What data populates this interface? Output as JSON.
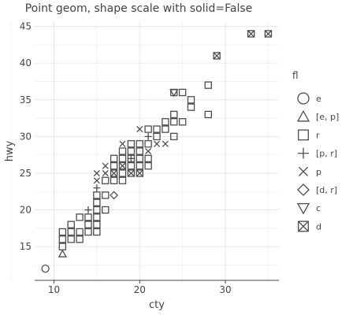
{
  "chart_data": {
    "type": "scatter",
    "title": "Point geom, shape scale with solid=False",
    "xlabel": "cty",
    "ylabel": "hwy",
    "xlim": [
      7.75,
      36.25
    ],
    "ylim": [
      10.4,
      45.6
    ],
    "x_ticks": [
      10,
      20,
      30
    ],
    "y_ticks": [
      15,
      20,
      25,
      30,
      35,
      40,
      45
    ],
    "grid": true,
    "mark_color": "#4d4d4d",
    "legend": {
      "title": "fl",
      "position": "right",
      "entries": [
        {
          "label": "e",
          "shape": "circle"
        },
        {
          "label": "[e, p]",
          "shape": "triangle-up"
        },
        {
          "label": "r",
          "shape": "square"
        },
        {
          "label": "[p, r]",
          "shape": "plus"
        },
        {
          "label": "p",
          "shape": "cross"
        },
        {
          "label": "[d, r]",
          "shape": "diamond"
        },
        {
          "label": "c",
          "shape": "triangle-down"
        },
        {
          "label": "d",
          "shape": "square-cross"
        }
      ]
    },
    "series": [
      {
        "name": "e",
        "shape": "circle",
        "points": [
          [
            9,
            12
          ]
        ]
      },
      {
        "name": "[e, p]",
        "shape": "triangle-up",
        "points": [
          [
            11,
            14
          ]
        ]
      },
      {
        "name": "r",
        "shape": "square",
        "points": [
          [
            11,
            15
          ],
          [
            11,
            16
          ],
          [
            11,
            17
          ],
          [
            12,
            16
          ],
          [
            12,
            17
          ],
          [
            12,
            18
          ],
          [
            13,
            16
          ],
          [
            13,
            17
          ],
          [
            13,
            19
          ],
          [
            14,
            17
          ],
          [
            14,
            18
          ],
          [
            14,
            19
          ],
          [
            15,
            17
          ],
          [
            15,
            18
          ],
          [
            15,
            19
          ],
          [
            15,
            20
          ],
          [
            15,
            21
          ],
          [
            15,
            22
          ],
          [
            16,
            20
          ],
          [
            16,
            22
          ],
          [
            16,
            24
          ],
          [
            17,
            24
          ],
          [
            17,
            25
          ],
          [
            17,
            26
          ],
          [
            17,
            27
          ],
          [
            18,
            24
          ],
          [
            18,
            25
          ],
          [
            18,
            26
          ],
          [
            18,
            27
          ],
          [
            18,
            28
          ],
          [
            19,
            25
          ],
          [
            19,
            26
          ],
          [
            19,
            27
          ],
          [
            19,
            28
          ],
          [
            19,
            29
          ],
          [
            20,
            25
          ],
          [
            20,
            26
          ],
          [
            20,
            27
          ],
          [
            20,
            28
          ],
          [
            20,
            29
          ],
          [
            21,
            26
          ],
          [
            21,
            27
          ],
          [
            21,
            29
          ],
          [
            21,
            31
          ],
          [
            22,
            30
          ],
          [
            22,
            31
          ],
          [
            23,
            31
          ],
          [
            23,
            32
          ],
          [
            24,
            30
          ],
          [
            24,
            32
          ],
          [
            24,
            33
          ],
          [
            24,
            36
          ],
          [
            25,
            32
          ],
          [
            25,
            36
          ],
          [
            26,
            34
          ],
          [
            26,
            35
          ],
          [
            28,
            33
          ],
          [
            28,
            37
          ]
        ]
      },
      {
        "name": "[p, r]",
        "shape": "plus",
        "points": [
          [
            14,
            20
          ],
          [
            15,
            23
          ],
          [
            19,
            27
          ],
          [
            21,
            30
          ]
        ]
      },
      {
        "name": "p",
        "shape": "cross",
        "points": [
          [
            15,
            24
          ],
          [
            15,
            25
          ],
          [
            16,
            25
          ],
          [
            16,
            26
          ],
          [
            17,
            25
          ],
          [
            18,
            26
          ],
          [
            18,
            29
          ],
          [
            19,
            25
          ],
          [
            20,
            25
          ],
          [
            20,
            31
          ],
          [
            21,
            28
          ],
          [
            22,
            29
          ],
          [
            23,
            29
          ]
        ]
      },
      {
        "name": "[d, r]",
        "shape": "diamond",
        "points": [
          [
            17,
            22
          ]
        ]
      },
      {
        "name": "c",
        "shape": "triangle-down",
        "points": [
          [
            24,
            36
          ]
        ]
      },
      {
        "name": "d",
        "shape": "square-cross",
        "points": [
          [
            29,
            41
          ],
          [
            33,
            44
          ],
          [
            35,
            44
          ]
        ]
      }
    ]
  }
}
